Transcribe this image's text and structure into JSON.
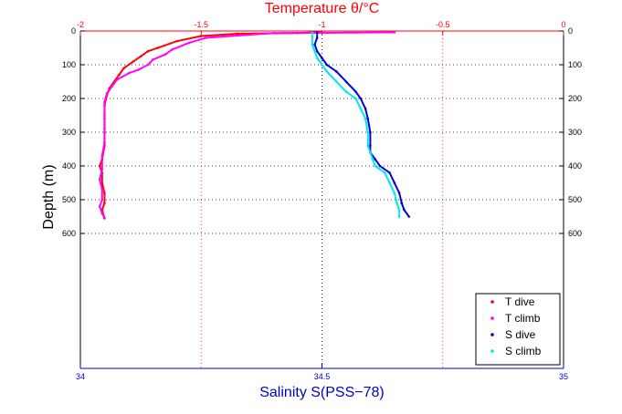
{
  "chart_data": {
    "type": "scatter",
    "top_axis": {
      "label": "Temperature θ/°C",
      "range": [
        -2,
        0
      ],
      "ticks": [
        "-2",
        "-1.5",
        "-1",
        "-0.5",
        "0"
      ],
      "color": "#ff0000"
    },
    "bottom_axis": {
      "label": "Salinity S(PSS−78)",
      "range": [
        34,
        35
      ],
      "ticks": [
        "34",
        "34.5",
        "35"
      ],
      "color": "#0000cc"
    },
    "left_axis": {
      "label": "Depth (m)",
      "range": [
        0,
        1000
      ],
      "inverted": true,
      "ticks": [
        "0",
        "100",
        "200",
        "300",
        "400",
        "500",
        "600"
      ],
      "color": "#000000"
    },
    "right_axis": {
      "ticks": [
        "0",
        "100",
        "200",
        "300",
        "400",
        "500",
        "600"
      ]
    },
    "grid": true,
    "legend_position": "bottom-right",
    "series": [
      {
        "name": "T dive",
        "axis": "temperature",
        "color": "#ff0000",
        "points": [
          [
            -1.0,
            3
          ],
          [
            -1.1,
            6
          ],
          [
            -1.35,
            8
          ],
          [
            -1.5,
            15
          ],
          [
            -1.6,
            30
          ],
          [
            -1.68,
            50
          ],
          [
            -1.72,
            60
          ],
          [
            -1.75,
            75
          ],
          [
            -1.78,
            90
          ],
          [
            -1.82,
            110
          ],
          [
            -1.84,
            130
          ],
          [
            -1.86,
            150
          ],
          [
            -1.88,
            170
          ],
          [
            -1.89,
            190
          ],
          [
            -1.9,
            220
          ],
          [
            -1.9,
            260
          ],
          [
            -1.9,
            300
          ],
          [
            -1.9,
            340
          ],
          [
            -1.91,
            380
          ],
          [
            -1.92,
            400
          ],
          [
            -1.91,
            420
          ],
          [
            -1.91,
            450
          ],
          [
            -1.9,
            480
          ],
          [
            -1.9,
            510
          ],
          [
            -1.91,
            530
          ],
          [
            -1.9,
            555
          ]
        ]
      },
      {
        "name": "T climb",
        "axis": "temperature",
        "color": "#ff00ff",
        "points": [
          [
            -0.7,
            4
          ],
          [
            -1.2,
            6
          ],
          [
            -1.48,
            20
          ],
          [
            -1.55,
            35
          ],
          [
            -1.62,
            55
          ],
          [
            -1.65,
            70
          ],
          [
            -1.7,
            85
          ],
          [
            -1.72,
            100
          ],
          [
            -1.76,
            115
          ],
          [
            -1.8,
            125
          ],
          [
            -1.85,
            145
          ],
          [
            -1.87,
            165
          ],
          [
            -1.89,
            185
          ],
          [
            -1.9,
            210
          ],
          [
            -1.9,
            250
          ],
          [
            -1.9,
            290
          ],
          [
            -1.9,
            330
          ],
          [
            -1.91,
            370
          ],
          [
            -1.91,
            410
          ],
          [
            -1.92,
            440
          ],
          [
            -1.91,
            470
          ],
          [
            -1.91,
            500
          ],
          [
            -1.92,
            520
          ],
          [
            -1.91,
            540
          ],
          [
            -1.9,
            555
          ]
        ]
      },
      {
        "name": "S dive",
        "axis": "salinity",
        "color": "#0000cc",
        "points": [
          [
            34.49,
            5
          ],
          [
            34.49,
            20
          ],
          [
            34.485,
            40
          ],
          [
            34.49,
            60
          ],
          [
            34.5,
            80
          ],
          [
            34.51,
            100
          ],
          [
            34.53,
            120
          ],
          [
            34.55,
            150
          ],
          [
            34.57,
            180
          ],
          [
            34.58,
            200
          ],
          [
            34.59,
            230
          ],
          [
            34.595,
            260
          ],
          [
            34.6,
            300
          ],
          [
            34.6,
            340
          ],
          [
            34.6,
            360
          ],
          [
            34.61,
            380
          ],
          [
            34.62,
            400
          ],
          [
            34.64,
            420
          ],
          [
            34.65,
            450
          ],
          [
            34.66,
            480
          ],
          [
            34.665,
            510
          ],
          [
            34.67,
            530
          ],
          [
            34.68,
            550
          ]
        ]
      },
      {
        "name": "S climb",
        "axis": "salinity",
        "color": "#00e5ee",
        "points": [
          [
            34.48,
            5
          ],
          [
            34.48,
            20
          ],
          [
            34.48,
            40
          ],
          [
            34.485,
            60
          ],
          [
            34.49,
            80
          ],
          [
            34.5,
            100
          ],
          [
            34.51,
            120
          ],
          [
            34.53,
            150
          ],
          [
            34.55,
            180
          ],
          [
            34.57,
            200
          ],
          [
            34.58,
            230
          ],
          [
            34.59,
            260
          ],
          [
            34.595,
            300
          ],
          [
            34.595,
            340
          ],
          [
            34.6,
            360
          ],
          [
            34.605,
            380
          ],
          [
            34.61,
            400
          ],
          [
            34.63,
            420
          ],
          [
            34.64,
            450
          ],
          [
            34.65,
            480
          ],
          [
            34.655,
            510
          ],
          [
            34.66,
            530
          ],
          [
            34.66,
            550
          ]
        ]
      }
    ]
  }
}
